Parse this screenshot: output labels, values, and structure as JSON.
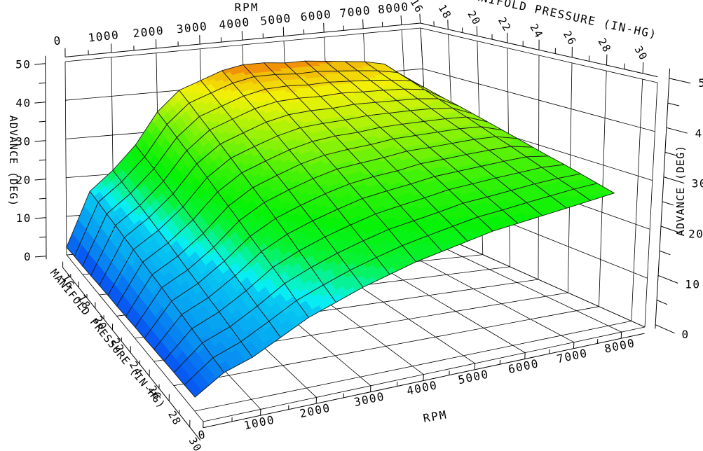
{
  "chart_data": {
    "type": "surface3d",
    "title": "",
    "x_axis": {
      "label": "RPM",
      "min": 0,
      "max": 8000,
      "major_tick_step": 1000,
      "minor_tick_step": 500,
      "tick_labels": [
        "0",
        "1000",
        "2000",
        "3000",
        "4000",
        "5000",
        "6000",
        "7000",
        "8000"
      ]
    },
    "y_axis": {
      "label": "MANIFOLD PRESSURE (IN-HG)",
      "min": 16,
      "max": 30,
      "major_tick_step": 2,
      "minor_tick_step": 1,
      "tick_labels": [
        "16",
        "18",
        "20",
        "22",
        "24",
        "26",
        "28",
        "30"
      ]
    },
    "z_axis": {
      "label": "ADVANCE (DEG)",
      "min": 0,
      "max": 50,
      "major_tick_step": 10,
      "minor_tick_step": 5,
      "tick_labels": [
        "0",
        "10",
        "20",
        "30",
        "40",
        "50"
      ]
    },
    "x": [
      0,
      500,
      1000,
      1500,
      2000,
      2500,
      3000,
      3500,
      4000,
      4500,
      5000,
      5500,
      6000,
      6500,
      7000,
      7500,
      8000
    ],
    "y": [
      16,
      17,
      18,
      19,
      20,
      21,
      22,
      23,
      24,
      25,
      26,
      27,
      28,
      29,
      30
    ],
    "z": [
      [
        2.0,
        16.0,
        21.0,
        27.0,
        35.0,
        40.0,
        42.0,
        44.0,
        45.0,
        45.0,
        44.5,
        44.5,
        44.0,
        43.5,
        43.0,
        42.0,
        38.5
      ],
      [
        2.1,
        15.4,
        20.1,
        25.9,
        33.6,
        38.4,
        40.4,
        42.3,
        43.4,
        43.4,
        43.0,
        43.1,
        42.7,
        42.3,
        41.8,
        40.9,
        37.7
      ],
      [
        2.1,
        14.7,
        19.3,
        24.9,
        32.1,
        36.7,
        38.7,
        40.6,
        41.7,
        41.9,
        41.6,
        41.7,
        41.4,
        41.0,
        40.6,
        39.9,
        36.9
      ],
      [
        2.2,
        14.1,
        18.4,
        23.8,
        30.7,
        35.1,
        37.1,
        39.0,
        40.1,
        40.3,
        40.1,
        40.3,
        40.0,
        39.8,
        39.5,
        38.8,
        36.1
      ],
      [
        2.3,
        13.4,
        17.6,
        22.7,
        29.3,
        33.4,
        35.4,
        37.3,
        38.4,
        38.7,
        38.6,
        38.9,
        38.7,
        38.5,
        38.3,
        37.7,
        35.4
      ],
      [
        2.4,
        12.8,
        16.7,
        21.6,
        27.9,
        31.8,
        33.8,
        35.6,
        36.8,
        37.1,
        37.2,
        37.5,
        37.4,
        37.3,
        37.1,
        36.6,
        34.6
      ],
      [
        2.4,
        12.1,
        15.9,
        20.6,
        26.4,
        30.1,
        32.1,
        33.9,
        35.1,
        35.6,
        35.7,
        36.1,
        36.1,
        36.0,
        35.9,
        35.6,
        33.8
      ],
      [
        2.5,
        11.5,
        15.0,
        19.5,
        25.0,
        28.5,
        30.5,
        32.3,
        33.5,
        34.0,
        34.3,
        34.8,
        34.8,
        34.8,
        34.8,
        34.5,
        33.0
      ],
      [
        2.6,
        10.9,
        14.1,
        18.4,
        23.6,
        26.9,
        28.9,
        30.6,
        31.9,
        32.4,
        32.8,
        33.4,
        33.4,
        33.5,
        33.6,
        33.4,
        32.2
      ],
      [
        2.6,
        10.2,
        13.3,
        17.4,
        22.1,
        25.2,
        27.2,
        28.9,
        30.2,
        30.9,
        31.3,
        32.0,
        32.1,
        32.3,
        32.4,
        32.4,
        31.4
      ],
      [
        2.7,
        9.6,
        12.4,
        16.3,
        20.7,
        23.6,
        25.6,
        27.2,
        28.6,
        29.3,
        29.9,
        30.6,
        30.8,
        31.0,
        31.2,
        31.3,
        30.6
      ],
      [
        2.8,
        8.9,
        11.6,
        15.2,
        19.3,
        21.9,
        23.9,
        25.5,
        26.9,
        27.7,
        28.4,
        29.2,
        29.5,
        29.8,
        30.0,
        30.2,
        29.9
      ],
      [
        2.9,
        8.3,
        10.7,
        14.1,
        17.9,
        20.3,
        22.3,
        23.9,
        25.3,
        26.1,
        26.9,
        27.8,
        28.1,
        28.5,
        28.9,
        29.1,
        29.1
      ],
      [
        2.9,
        7.6,
        9.9,
        13.1,
        16.4,
        18.6,
        20.6,
        22.2,
        23.6,
        24.6,
        25.5,
        26.4,
        26.8,
        27.3,
        27.7,
        28.1,
        28.3
      ],
      [
        3.0,
        7.0,
        9.0,
        12.0,
        15.0,
        17.0,
        19.0,
        20.5,
        22.0,
        23.0,
        24.0,
        25.0,
        25.5,
        26.0,
        26.5,
        27.0,
        27.5
      ]
    ],
    "colormap": {
      "space": "hsl",
      "hue_stops": [
        [
          0,
          228
        ],
        [
          8,
          205
        ],
        [
          16,
          190
        ],
        [
          22,
          130
        ],
        [
          30,
          108
        ],
        [
          40,
          62
        ],
        [
          43,
          48
        ],
        [
          45,
          30
        ],
        [
          50,
          18
        ]
      ],
      "saturation": "94%",
      "lightness": "49%",
      "band_size": 1.25
    },
    "grid": {
      "floor": true,
      "far_wall": true,
      "right_wall": true,
      "color": "#000000",
      "mesh_line_color": "#1b1b1b"
    },
    "background": "#ffffff"
  }
}
